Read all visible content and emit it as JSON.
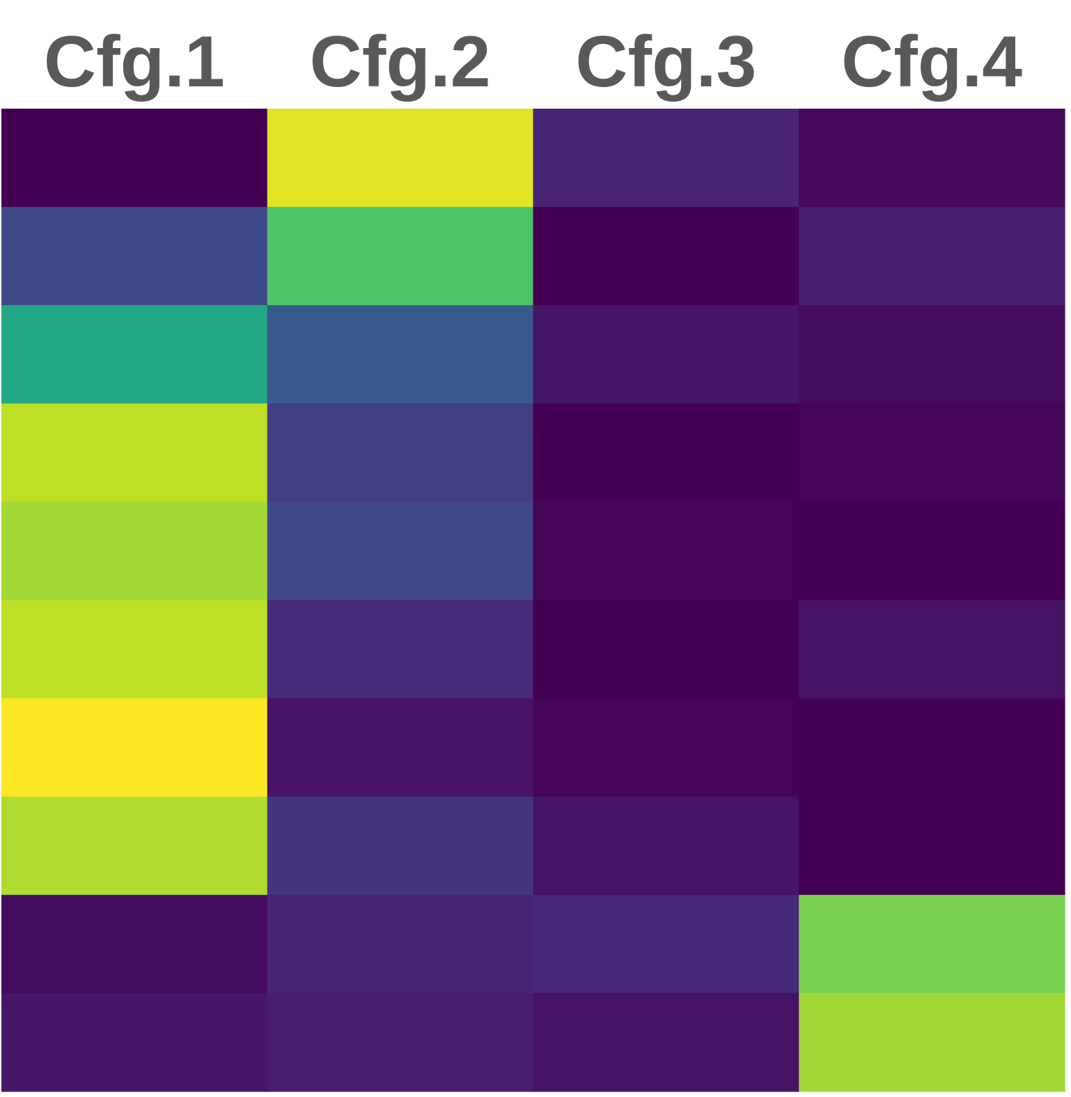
{
  "chart_data": {
    "type": "heatmap",
    "title": "",
    "xlabel": "",
    "ylabel": "",
    "columns": [
      "Cfg.1",
      "Cfg.2",
      "Cfg.3",
      "Cfg.4"
    ],
    "row_count": 10,
    "colormap": "viridis",
    "value_range": [
      0,
      1
    ],
    "values": [
      [
        0.0,
        0.96,
        0.1,
        0.02
      ],
      [
        0.22,
        0.72,
        0.0,
        0.08
      ],
      [
        0.6,
        0.28,
        0.06,
        0.03
      ],
      [
        0.9,
        0.18,
        0.0,
        0.01
      ],
      [
        0.86,
        0.21,
        0.01,
        0.0
      ],
      [
        0.9,
        0.12,
        0.0,
        0.05
      ],
      [
        1.0,
        0.05,
        0.01,
        0.0
      ],
      [
        0.88,
        0.15,
        0.05,
        0.0
      ],
      [
        0.03,
        0.1,
        0.11,
        0.8
      ],
      [
        0.06,
        0.08,
        0.05,
        0.86
      ]
    ],
    "grid": false,
    "legend": "none"
  }
}
